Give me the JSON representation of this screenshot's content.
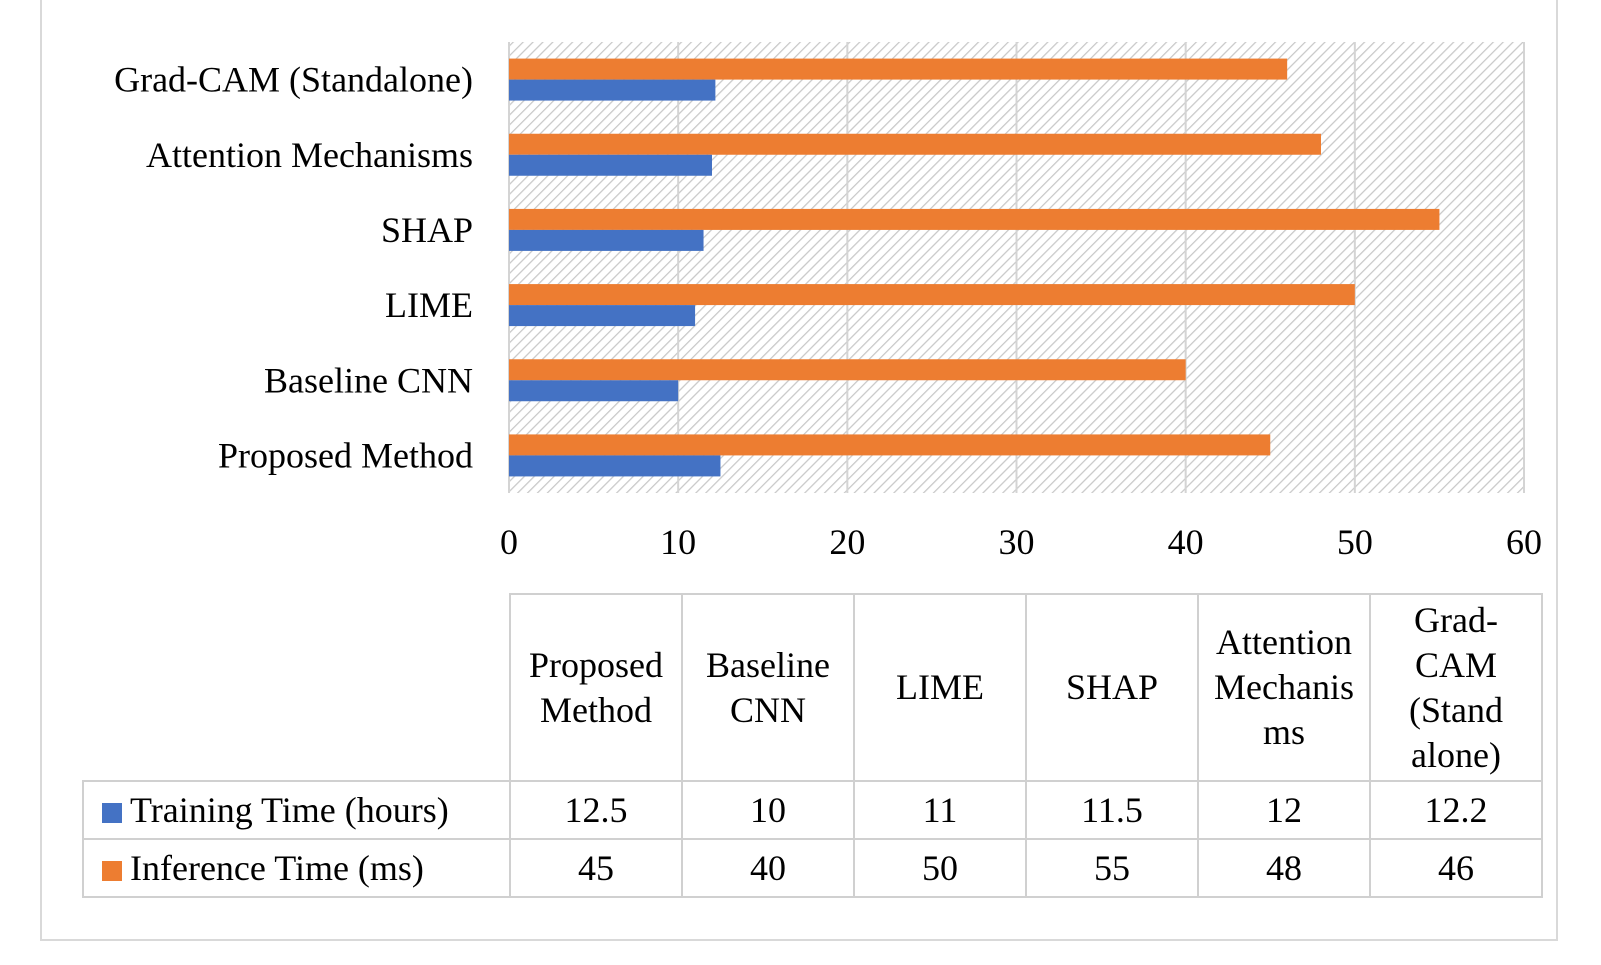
{
  "chart_data": {
    "type": "bar",
    "orientation": "horizontal",
    "categories": [
      "Proposed Method",
      "Baseline CNN",
      "LIME",
      "SHAP",
      "Attention Mechanisms",
      "Grad-CAM (Standalone)"
    ],
    "series": [
      {
        "name": "Training Time (hours)",
        "color": "#4472c4",
        "values": [
          12.5,
          10,
          11,
          11.5,
          12,
          12.2
        ]
      },
      {
        "name": "Inference Time (ms)",
        "color": "#ed7d31",
        "values": [
          45,
          40,
          50,
          55,
          48,
          46
        ]
      }
    ],
    "xlim": [
      0,
      60
    ],
    "xticks": [
      "0",
      "10",
      "20",
      "30",
      "40",
      "50",
      "60"
    ],
    "grid": true,
    "legend": "data-table-below",
    "table": {
      "headers": [
        "Proposed\nMethod",
        "Baseline\nCNN",
        "LIME",
        "SHAP",
        "Attention\nMechanis\nms",
        "Grad-\nCAM\n(Stand\nalone)"
      ],
      "rows": [
        {
          "label": "Training Time (hours)",
          "cells": [
            "12.5",
            "10",
            "11",
            "11.5",
            "12",
            "12.2"
          ]
        },
        {
          "label": "Inference Time (ms)",
          "cells": [
            "45",
            "40",
            "50",
            "55",
            "48",
            "46"
          ]
        }
      ]
    }
  }
}
